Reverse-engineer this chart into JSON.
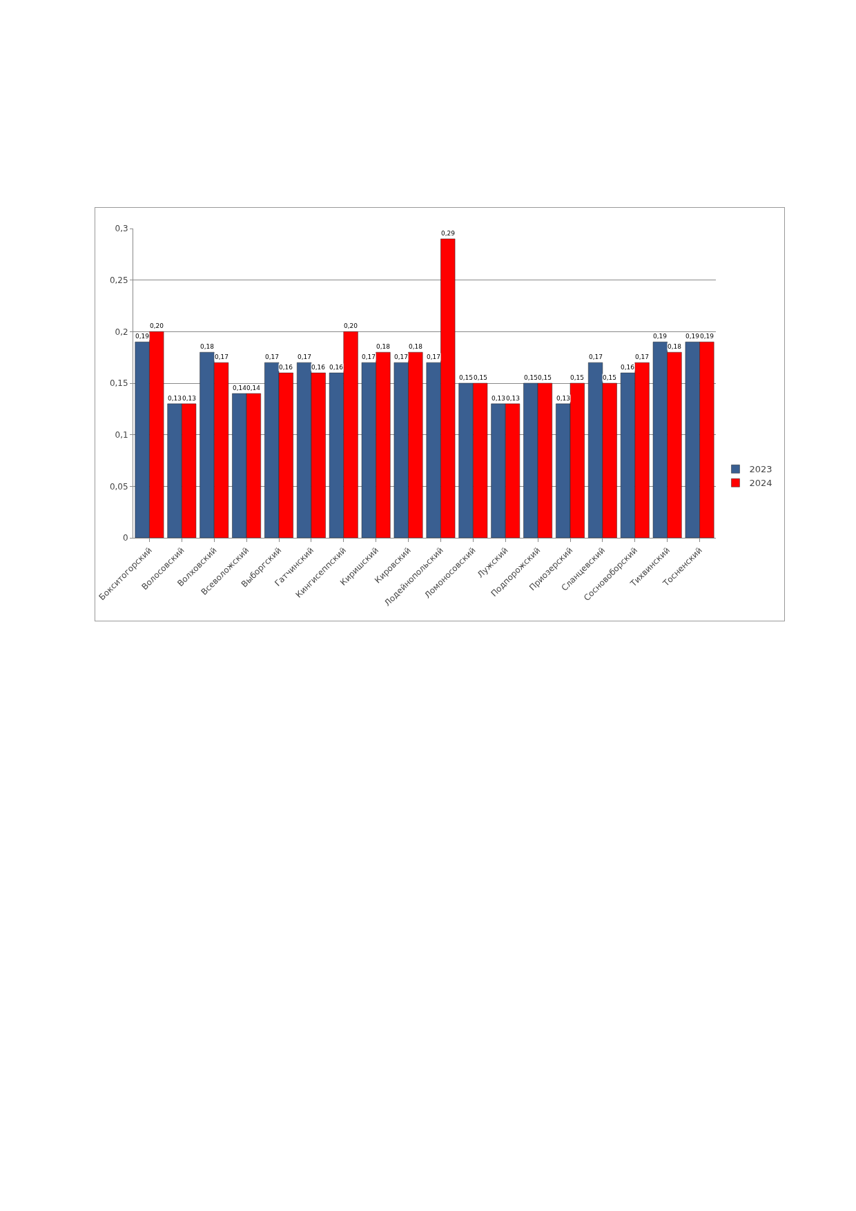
{
  "chart_data": {
    "type": "bar",
    "categories": [
      "Бокситогорский",
      "Волосовский",
      "Волховский",
      "Всеволожский",
      "Выборгский",
      "Гатчинский",
      "Кингисеппский",
      "Киришский",
      "Кировский",
      "Лодейнопольский",
      "Ломоносовский",
      "Лужский",
      "Подпорожский",
      "Приозерский",
      "Сланцевский",
      "Сосновоборский",
      "Тихвинский",
      "Тосненский"
    ],
    "series": [
      {
        "name": "2023",
        "color": "#3a5f91",
        "values": [
          0.19,
          0.13,
          0.18,
          0.14,
          0.17,
          0.17,
          0.16,
          0.17,
          0.17,
          0.17,
          0.15,
          0.13,
          0.15,
          0.13,
          0.17,
          0.16,
          0.19,
          0.19
        ],
        "value_labels": [
          "0,19",
          "0,13",
          "0,18",
          "0,14",
          "0,17",
          "0,17",
          "0,16",
          "0,17",
          "0,17",
          "0,17",
          "0,15",
          "0,13",
          "0,15",
          "0,13",
          "0,17",
          "0,16",
          "0,19",
          "0,19"
        ]
      },
      {
        "name": "2024",
        "color": "#ff0000",
        "values": [
          0.2,
          0.13,
          0.17,
          0.14,
          0.16,
          0.16,
          0.2,
          0.18,
          0.18,
          0.29,
          0.15,
          0.13,
          0.15,
          0.15,
          0.15,
          0.17,
          0.18,
          0.19
        ],
        "value_labels": [
          "0,20",
          "0,13",
          "0,17",
          "0,14",
          "0,16",
          "0,16",
          "0,20",
          "0,18",
          "0,18",
          "0,29",
          "0,15",
          "0,13",
          "0,15",
          "0,15",
          "0,15",
          "0,17",
          "0,18",
          "0,19"
        ]
      }
    ],
    "ylim": [
      0,
      0.3
    ],
    "yticks": [
      {
        "value": 0,
        "label": "0"
      },
      {
        "value": 0.05,
        "label": "0,05"
      },
      {
        "value": 0.1,
        "label": "0,1"
      },
      {
        "value": 0.15,
        "label": "0,15"
      },
      {
        "value": 0.2,
        "label": "0,2"
      },
      {
        "value": 0.25,
        "label": "0,25"
      },
      {
        "value": 0.3,
        "label": "0,3"
      }
    ],
    "grid": "y",
    "legend": "right"
  }
}
